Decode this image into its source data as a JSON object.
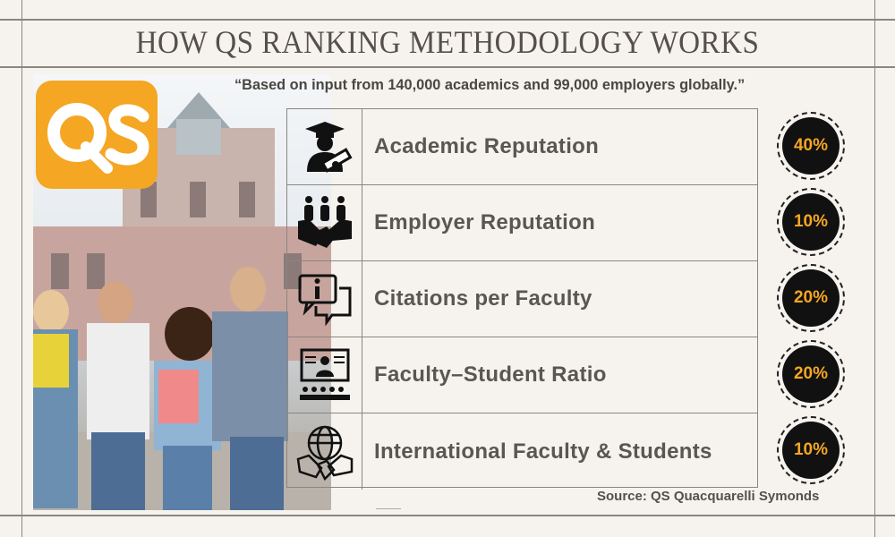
{
  "title": "HOW QS RANKING METHODOLOGY WORKS",
  "quote": "“Based on input from 140,000 academics and 99,000 employers globally.”",
  "logo": {
    "text": "QS",
    "color": "#f5a623"
  },
  "accent_color": "#f5a623",
  "criteria": [
    {
      "label": "Academic Reputation",
      "weight": "40%",
      "icon": "graduate-diploma-icon"
    },
    {
      "label": "Employer Reputation",
      "weight": "10%",
      "icon": "handshake-people-icon"
    },
    {
      "label": "Citations per Faculty",
      "weight": "20%",
      "icon": "info-chat-icon"
    },
    {
      "label": "Faculty–Student Ratio",
      "weight": "20%",
      "icon": "lecture-audience-icon"
    },
    {
      "label": "International Faculty & Students",
      "weight": "10%",
      "icon": "globe-handshake-icon"
    }
  ],
  "source": "Source: QS Quacquarelli Symonds"
}
